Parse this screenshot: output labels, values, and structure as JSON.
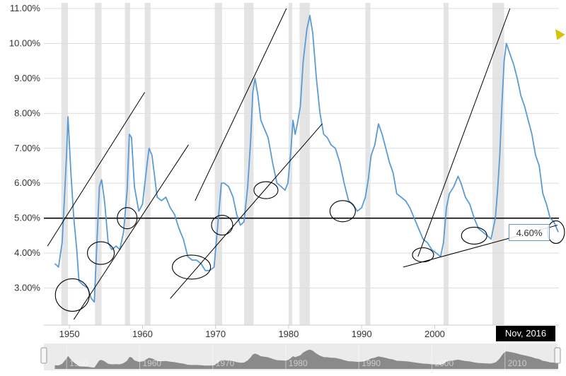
{
  "chart_data": {
    "type": "line",
    "title": "",
    "xlabel": "",
    "ylabel": "",
    "y_ticks": [
      "3.00%",
      "4.00%",
      "5.00%",
      "6.00%",
      "7.00%",
      "8.00%",
      "9.00%",
      "10.00%",
      "11.00%"
    ],
    "x_ticks": [
      "1950",
      "1960",
      "1970",
      "1980",
      "1990",
      "2000",
      "2010"
    ],
    "xlim": [
      1946.5,
      2017.0
    ],
    "ylim": [
      2.0,
      11.0
    ],
    "grid": "horizontal",
    "reference_line": 5.0,
    "recessions": [
      [
        1948.9,
        1949.8
      ],
      [
        1953.5,
        1954.4
      ],
      [
        1957.6,
        1958.3
      ],
      [
        1960.3,
        1961.1
      ],
      [
        1969.9,
        1970.9
      ],
      [
        1973.9,
        1975.2
      ],
      [
        1980.0,
        1980.5
      ],
      [
        1981.5,
        1982.9
      ],
      [
        1990.5,
        1991.2
      ],
      [
        2001.2,
        2001.9
      ],
      [
        2007.9,
        2009.5
      ]
    ],
    "series": [
      {
        "name": "",
        "x": [
          1948.0,
          1948.5,
          1949.0,
          1949.4,
          1949.6,
          1949.8,
          1950.2,
          1950.6,
          1951.0,
          1951.3,
          1951.8,
          1952.5,
          1953.0,
          1953.4,
          1953.8,
          1954.1,
          1954.4,
          1954.8,
          1955.3,
          1955.8,
          1956.4,
          1956.9,
          1957.4,
          1957.9,
          1958.2,
          1958.5,
          1958.9,
          1959.5,
          1960.0,
          1960.6,
          1960.9,
          1961.3,
          1961.6,
          1962.0,
          1962.6,
          1963.2,
          1963.8,
          1964.4,
          1965.0,
          1965.6,
          1966.2,
          1966.8,
          1967.4,
          1968.0,
          1968.6,
          1969.2,
          1969.8,
          1970.3,
          1970.8,
          1971.2,
          1971.8,
          1972.4,
          1972.9,
          1973.4,
          1973.9,
          1974.4,
          1974.8,
          1975.1,
          1975.4,
          1975.8,
          1976.2,
          1976.6,
          1977.2,
          1977.8,
          1978.4,
          1979.0,
          1979.5,
          1979.9,
          1980.3,
          1980.6,
          1980.9,
          1981.2,
          1981.6,
          1982.0,
          1982.5,
          1982.9,
          1983.3,
          1983.8,
          1984.3,
          1984.8,
          1985.3,
          1985.8,
          1986.4,
          1987.0,
          1987.6,
          1988.2,
          1988.8,
          1989.4,
          1990.0,
          1990.5,
          1990.9,
          1991.3,
          1991.8,
          1992.3,
          1992.8,
          1993.3,
          1993.8,
          1994.3,
          1994.8,
          1995.4,
          1996.0,
          1996.6,
          1997.2,
          1997.8,
          1998.4,
          1999.0,
          1999.6,
          2000.2,
          2000.8,
          2001.2,
          2001.6,
          2002.0,
          2002.6,
          2003.2,
          2003.6,
          2004.2,
          2004.8,
          2005.4,
          2006.0,
          2006.6,
          2007.2,
          2007.7,
          2008.0,
          2008.3,
          2008.6,
          2008.9,
          2009.2,
          2009.5,
          2009.8,
          2010.3,
          2010.8,
          2011.3,
          2011.8,
          2012.3,
          2012.8,
          2013.3,
          2013.8,
          2014.3,
          2014.8,
          2015.3,
          2015.8,
          2016.3,
          2016.9
        ],
        "y": [
          3.7,
          3.6,
          4.3,
          5.9,
          6.8,
          7.9,
          6.3,
          5.0,
          4.1,
          3.2,
          3.1,
          3.0,
          2.7,
          2.6,
          4.5,
          5.9,
          6.1,
          5.5,
          4.3,
          4.1,
          4.2,
          4.1,
          4.6,
          5.8,
          7.4,
          7.3,
          5.9,
          5.2,
          5.4,
          6.5,
          7.0,
          6.8,
          6.3,
          5.6,
          5.5,
          5.6,
          5.3,
          5.1,
          4.7,
          4.4,
          3.9,
          3.8,
          3.8,
          3.7,
          3.5,
          3.5,
          3.6,
          4.8,
          6.0,
          6.0,
          5.9,
          5.6,
          5.1,
          4.8,
          4.9,
          5.9,
          7.2,
          8.6,
          9.0,
          8.5,
          7.8,
          7.6,
          7.3,
          6.6,
          6.0,
          5.9,
          5.8,
          6.0,
          6.9,
          7.8,
          7.4,
          7.7,
          8.2,
          9.5,
          10.4,
          10.8,
          10.3,
          9.0,
          8.0,
          7.4,
          7.3,
          7.1,
          7.0,
          6.6,
          6.0,
          5.5,
          5.4,
          5.2,
          5.3,
          5.6,
          6.1,
          6.8,
          7.1,
          7.7,
          7.4,
          7.0,
          6.6,
          6.3,
          5.7,
          5.6,
          5.5,
          5.3,
          5.0,
          4.7,
          4.4,
          4.3,
          4.1,
          4.0,
          3.9,
          4.3,
          5.3,
          5.7,
          5.9,
          6.2,
          6.0,
          5.6,
          5.4,
          5.0,
          4.7,
          4.6,
          4.5,
          4.4,
          4.7,
          5.0,
          5.8,
          6.8,
          8.3,
          9.5,
          10.0,
          9.7,
          9.4,
          9.0,
          8.5,
          8.2,
          7.8,
          7.4,
          6.8,
          6.5,
          5.7,
          5.4,
          5.0,
          4.9,
          4.6
        ]
      }
    ],
    "current_value_label": "4.60%",
    "cursor_date": "Nov, 2016",
    "annotations": {
      "trend_lines": [
        {
          "x1": 1947.0,
          "y1": 4.2,
          "x2": 1960.3,
          "y2": 8.6
        },
        {
          "x1": 1950.6,
          "y1": 2.1,
          "x2": 1966.3,
          "y2": 7.1
        },
        {
          "x1": 1967.2,
          "y1": 5.5,
          "x2": 1979.7,
          "y2": 11.0
        },
        {
          "x1": 1963.8,
          "y1": 2.7,
          "x2": 1984.6,
          "y2": 7.7
        },
        {
          "x1": 1995.7,
          "y1": 3.6,
          "x2": 2016.8,
          "y2": 4.8
        },
        {
          "x1": 1997.7,
          "y1": 3.9,
          "x2": 2010.3,
          "y2": 11.0
        }
      ],
      "circles": [
        {
          "x": 1950.4,
          "y": 2.8,
          "rx": 24,
          "ry": 23
        },
        {
          "x": 1954.3,
          "y": 4.0,
          "rx": 19,
          "ry": 16
        },
        {
          "x": 1957.9,
          "y": 5.0,
          "rx": 14,
          "ry": 15
        },
        {
          "x": 1966.7,
          "y": 3.6,
          "rx": 27,
          "ry": 17
        },
        {
          "x": 1970.9,
          "y": 4.8,
          "rx": 15,
          "ry": 14
        },
        {
          "x": 1976.9,
          "y": 5.8,
          "rx": 17,
          "ry": 12
        },
        {
          "x": 1987.4,
          "y": 5.2,
          "rx": 18,
          "ry": 15
        },
        {
          "x": 1998.4,
          "y": 3.95,
          "rx": 15,
          "ry": 10
        },
        {
          "x": 2005.4,
          "y": 4.5,
          "rx": 18,
          "ry": 12
        },
        {
          "x": 2016.6,
          "y": 4.6,
          "rx": 12,
          "ry": 16
        }
      ]
    },
    "navigator": {
      "ticks": [
        "1950",
        "1960",
        "1970",
        "1980",
        "1990",
        "2000",
        "2010"
      ]
    }
  },
  "colors": {
    "line": "#5b9bd5",
    "recession": "#e4e4e4",
    "grid": "#dddddd",
    "reference": "#000000",
    "annotation": "#000000",
    "navigator_fill": "#8a8a8a",
    "navigator_bg": "#ebebeb"
  }
}
